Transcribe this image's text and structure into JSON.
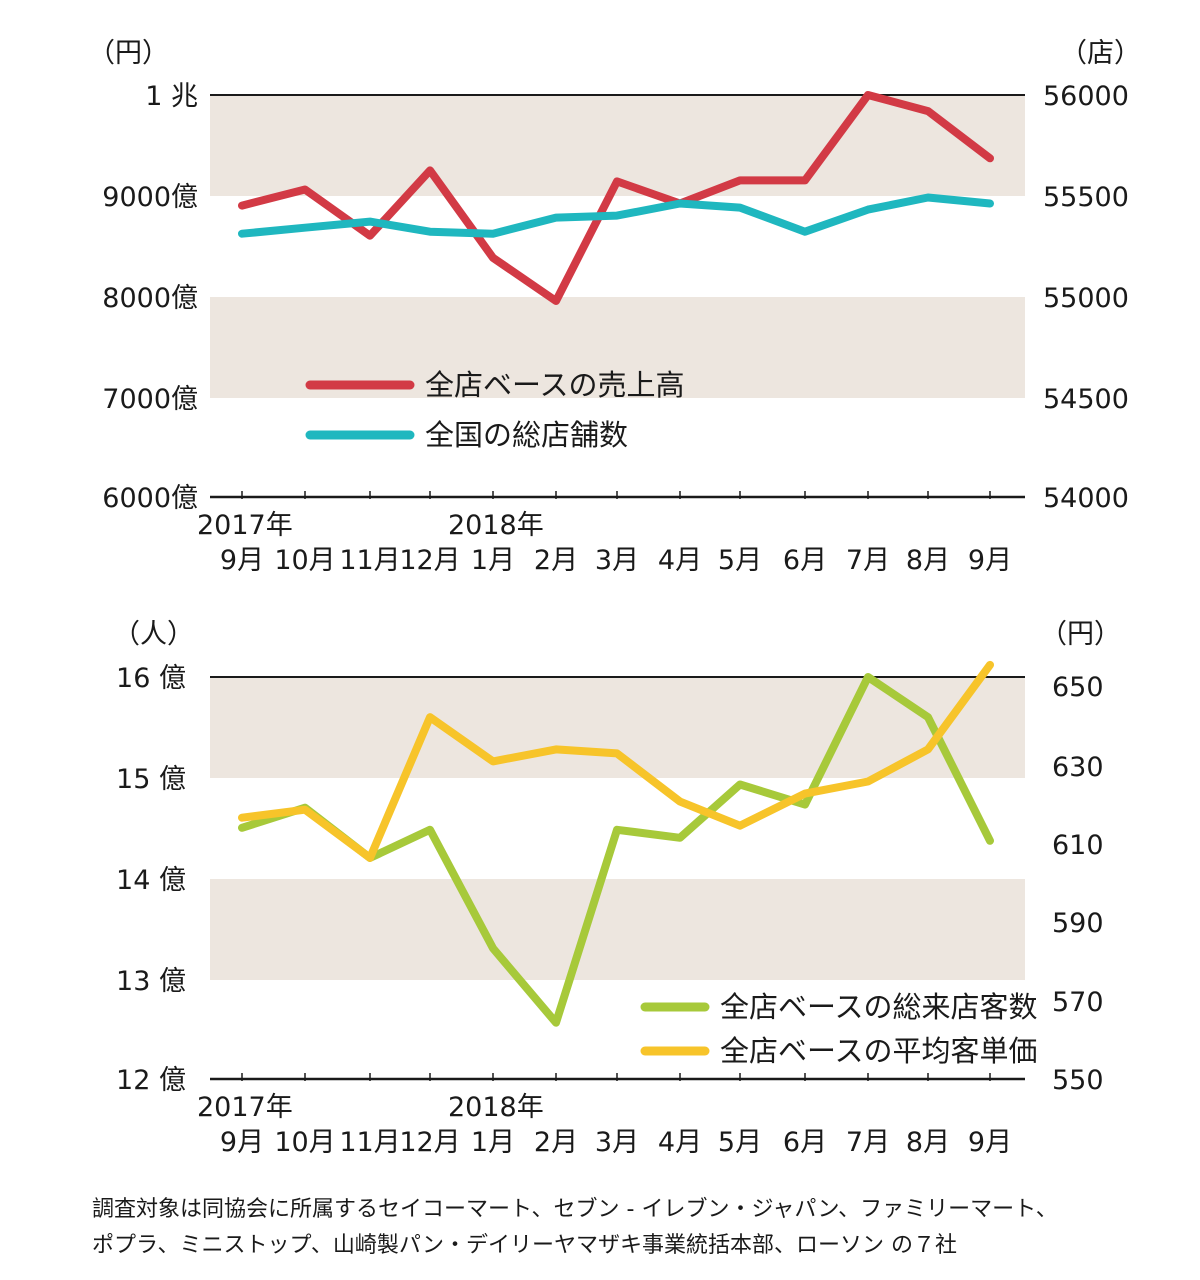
{
  "colors": {
    "band": "#ede6df",
    "axis": "#1a1a1a",
    "sales": "#d23a45",
    "stores": "#1fb7bf",
    "customers": "#a7c93a",
    "unit_price": "#f7c42a"
  },
  "chart_data": [
    {
      "type": "line",
      "x_year_labels": [
        "2017年",
        "2018年"
      ],
      "categories": [
        "9月",
        "10月",
        "11月",
        "12月",
        "1月",
        "2月",
        "3月",
        "4月",
        "5月",
        "6月",
        "7月",
        "8月",
        "9月"
      ],
      "left_unit": "（円）",
      "right_unit": "（店）",
      "left_ticks": [
        "1 兆",
        "9000億",
        "8000億",
        "7000億",
        "6000億"
      ],
      "right_ticks": [
        "56000",
        "55500",
        "55000",
        "54500",
        "54000"
      ],
      "y_left_lim": [
        6000,
        10000
      ],
      "y_right_lim": [
        54000,
        56000
      ],
      "series": [
        {
          "name": "全店ベースの売上高",
          "axis": "left",
          "color_key": "sales",
          "values": [
            8900,
            9060,
            8600,
            9250,
            8380,
            7950,
            9140,
            8920,
            9150,
            9150,
            10000,
            9840,
            9370
          ]
        },
        {
          "name": "全国の総店舗数",
          "axis": "right",
          "color_key": "stores",
          "values": [
            55310,
            55340,
            55370,
            55320,
            55310,
            55390,
            55400,
            55460,
            55440,
            55320,
            55430,
            55490,
            55460
          ]
        }
      ]
    },
    {
      "type": "line",
      "x_year_labels": [
        "2017年",
        "2018年"
      ],
      "categories": [
        "9月",
        "10月",
        "11月",
        "12月",
        "1月",
        "2月",
        "3月",
        "4月",
        "5月",
        "6月",
        "7月",
        "8月",
        "9月"
      ],
      "left_unit": "（人）",
      "right_unit": "（円）",
      "left_ticks": [
        "16 億",
        "15 億",
        "14 億",
        "13 億",
        "12 億"
      ],
      "right_ticks": [
        "650",
        "630",
        "610",
        "590",
        "570",
        "550"
      ],
      "y_left_lim": [
        12,
        16
      ],
      "y_right_lim": [
        550,
        650
      ],
      "series": [
        {
          "name": "全店ベースの総来店客数",
          "axis": "left",
          "color_key": "customers",
          "values": [
            14.5,
            14.7,
            14.2,
            14.48,
            13.3,
            12.56,
            14.48,
            14.4,
            14.93,
            14.73,
            16.0,
            15.6,
            14.37
          ]
        },
        {
          "name": "全店ベースの平均客単価",
          "axis": "right",
          "color_key": "unit_price",
          "values": [
            615,
            617,
            605,
            640,
            629,
            632,
            631,
            619,
            613,
            621,
            624,
            632,
            653
          ]
        }
      ]
    }
  ],
  "footnote": {
    "line1": "調査対象は同協会に所属するセイコーマート、セブン - イレブン・ジャパン、ファミリーマート、",
    "line2": "ポプラ、ミニストップ、山崎製パン・デイリーヤマザキ事業統括本部、ローソン の７社"
  }
}
